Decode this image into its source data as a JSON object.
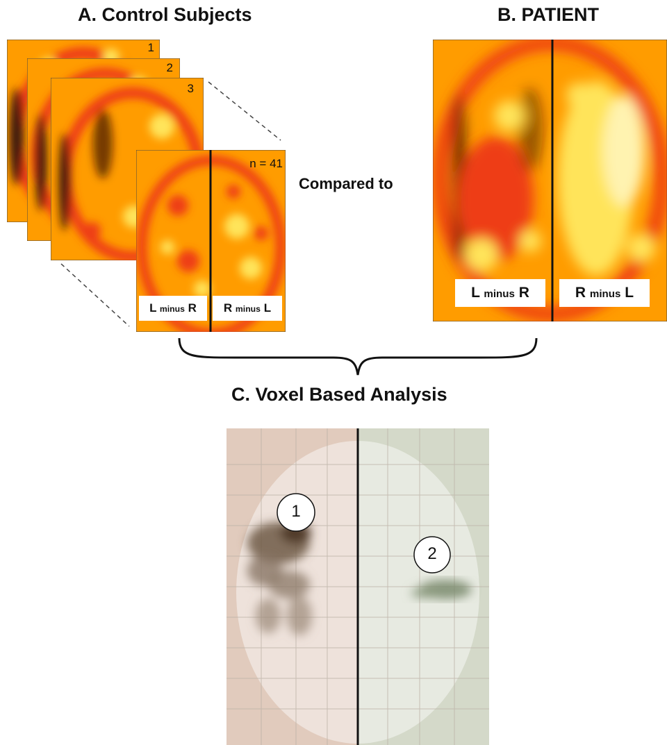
{
  "panel_a": {
    "title": "A. Control Subjects",
    "slice_numbers": [
      "1",
      "2",
      "3"
    ],
    "count_label": "n = 41",
    "label_left": {
      "big1": "L",
      "small": "minus",
      "big2": "R"
    },
    "label_right": {
      "big1": "R",
      "small": "minus",
      "big2": "L"
    }
  },
  "compared_to": "Compared to",
  "panel_b": {
    "title": "B. PATIENT",
    "label_left": {
      "big1": "L",
      "small": "minus",
      "big2": "R"
    },
    "label_right": {
      "big1": "R",
      "small": "minus",
      "big2": "L"
    }
  },
  "panel_c": {
    "title": "C. Voxel Based Analysis",
    "markers": [
      "1",
      "2"
    ]
  },
  "colors": {
    "heat_orange": "#ff9c00",
    "heat_red": "#ee3e12",
    "heat_yellow": "#ffe45a",
    "heat_dark": "#3a1208",
    "left_tint": "#e8d2c4",
    "right_tint": "#d7dccd",
    "cluster_brown": "#6e5a46",
    "cluster_green": "#7a8a6c"
  }
}
